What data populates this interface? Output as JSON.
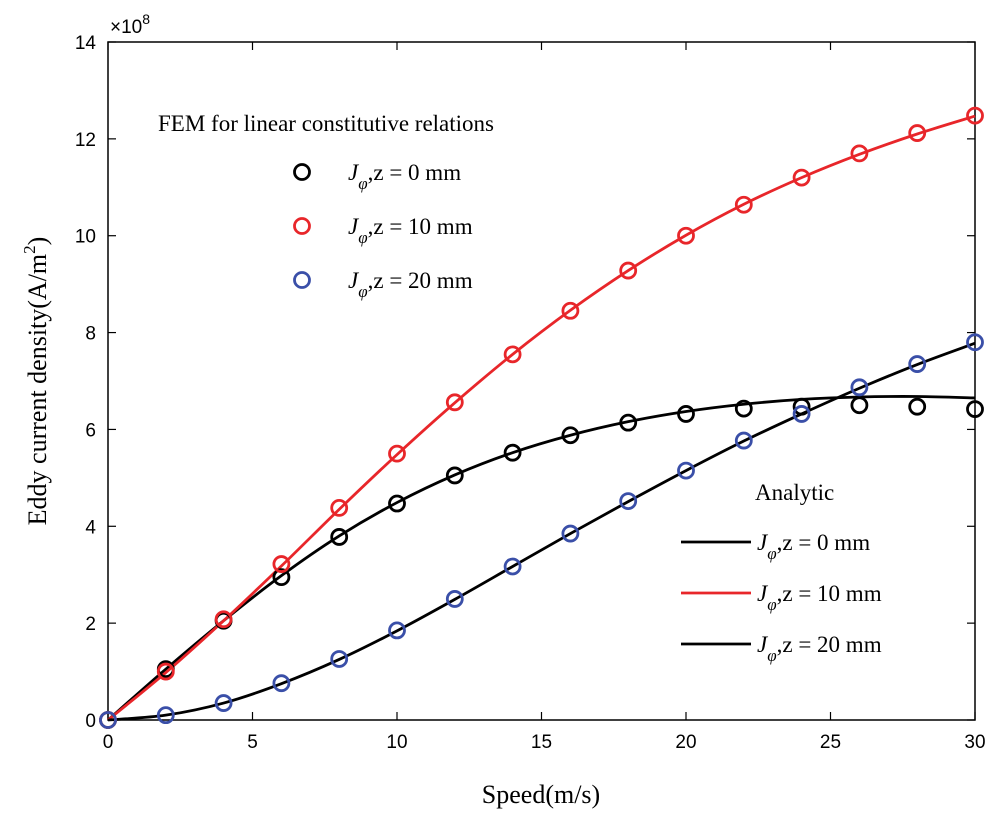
{
  "chart_data": {
    "type": "line",
    "title": "",
    "xlabel": "Speed(m/s)",
    "ylabel": "Eddy current density(A/m",
    "ylabel_sup": "2",
    "ylabel_close": ")",
    "xlim": [
      0,
      30
    ],
    "ylim": [
      0,
      14
    ],
    "xticks": [
      0,
      5,
      10,
      15,
      20,
      25,
      30
    ],
    "yticks": [
      0,
      2,
      4,
      6,
      8,
      10,
      12,
      14
    ],
    "y_multiplier": "×10",
    "y_multiplier_exp": "8",
    "fem_legend_title": "FEM for linear constitutive relations",
    "analytic_legend_title": "Analytic",
    "legend_symbol": "J",
    "legend_subscript": "φ",
    "fem_series": [
      {
        "name": "Jφ, z = 0 mm",
        "label": ",z = 0 mm",
        "color": "#000000",
        "x": [
          0,
          2,
          4,
          6,
          8,
          10,
          12,
          14,
          16,
          18,
          20,
          22,
          24,
          26,
          28,
          30
        ],
        "y": [
          0,
          1.05,
          2.05,
          2.95,
          3.78,
          4.47,
          5.05,
          5.52,
          5.88,
          6.14,
          6.32,
          6.43,
          6.47,
          6.5,
          6.47,
          6.42
        ]
      },
      {
        "name": "Jφ, z = 10 mm",
        "label": ",z = 10 mm",
        "color": "#e8262a",
        "x": [
          0,
          2,
          4,
          6,
          8,
          10,
          12,
          14,
          16,
          18,
          20,
          22,
          24,
          26,
          28,
          30
        ],
        "y": [
          0,
          1.0,
          2.08,
          3.22,
          4.38,
          5.5,
          6.56,
          7.55,
          8.45,
          9.28,
          10.0,
          10.64,
          11.2,
          11.7,
          12.12,
          12.48
        ]
      },
      {
        "name": "Jφ, z = 20 mm",
        "label": ",z = 20 mm",
        "color": "#3a4fa8",
        "x": [
          0,
          2,
          4,
          6,
          8,
          10,
          12,
          14,
          16,
          18,
          20,
          22,
          24,
          26,
          28,
          30
        ],
        "y": [
          0,
          0.1,
          0.35,
          0.76,
          1.26,
          1.85,
          2.5,
          3.17,
          3.85,
          4.52,
          5.15,
          5.77,
          6.32,
          6.87,
          7.35,
          7.8
        ]
      }
    ],
    "analytic_series": [
      {
        "name": "Jφ, z = 0 mm",
        "label": ",z = 0 mm",
        "color": "#000000",
        "x": [
          0,
          2,
          4,
          6,
          8,
          10,
          12,
          14,
          16,
          18,
          20,
          22,
          24,
          26,
          28,
          30
        ],
        "y": [
          0,
          1.05,
          2.05,
          2.98,
          3.8,
          4.49,
          5.06,
          5.52,
          5.88,
          6.16,
          6.37,
          6.52,
          6.62,
          6.67,
          6.68,
          6.65
        ]
      },
      {
        "name": "Jφ, z = 10 mm",
        "label": ",z = 10 mm",
        "color": "#e8262a",
        "x": [
          0,
          2,
          4,
          6,
          8,
          10,
          12,
          14,
          16,
          18,
          20,
          22,
          24,
          26,
          28,
          30
        ],
        "y": [
          0,
          0.98,
          2.05,
          3.18,
          4.35,
          5.48,
          6.55,
          7.55,
          8.46,
          9.28,
          10.01,
          10.65,
          11.2,
          11.68,
          12.1,
          12.47
        ]
      },
      {
        "name": "Jφ, z = 20 mm",
        "label": ",z = 20 mm",
        "color": "#000000",
        "x": [
          0,
          2,
          4,
          6,
          8,
          10,
          12,
          14,
          16,
          18,
          20,
          22,
          24,
          26,
          28,
          30
        ],
        "y": [
          0,
          0.1,
          0.35,
          0.75,
          1.25,
          1.84,
          2.49,
          3.17,
          3.85,
          4.51,
          5.15,
          5.76,
          6.32,
          6.85,
          7.34,
          7.78
        ]
      }
    ]
  }
}
